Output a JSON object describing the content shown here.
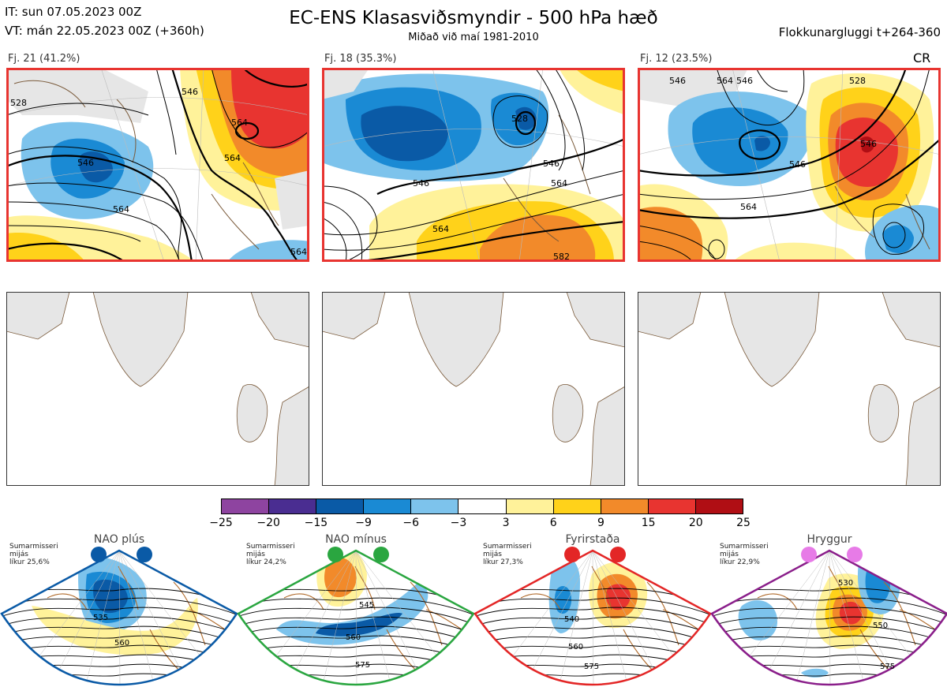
{
  "header": {
    "it": "IT: sun 07.05.2023 00Z",
    "vt": "VT: mán 22.05.2023 00Z  (+360h)",
    "title": "EC-ENS Klasasviðsmyndir - 500 hPa hæð",
    "subtitle": "Miðað við maí 1981-2010",
    "window": "Flokkunargluggi t+264-360"
  },
  "panels": [
    {
      "label": "Fj. 21 (41.2%)",
      "contours": [
        "528",
        "546",
        "564",
        "564",
        "546",
        "564",
        "564"
      ]
    },
    {
      "label": "Fj. 18 (35.3%)",
      "contours": [
        "528",
        "546",
        "546",
        "564",
        "564",
        "582"
      ]
    },
    {
      "label": "Fj. 12 (23.5%)",
      "tag": "CR",
      "contours": [
        "546",
        "564",
        "546",
        "546",
        "564",
        "546",
        "528"
      ]
    }
  ],
  "colorbar": {
    "colors": [
      "#8e44a0",
      "#4a2d91",
      "#0a5aa6",
      "#1a8ad4",
      "#7dc3ec",
      "#ffffff",
      "#fff29a",
      "#ffd21a",
      "#f28a2a",
      "#e83430",
      "#b00e14"
    ],
    "ticks": [
      "−25",
      "−20",
      "−15",
      "−9",
      "−6",
      "−3",
      "3",
      "6",
      "9",
      "15",
      "20",
      "25"
    ]
  },
  "regimes": [
    {
      "name": "NAO plús",
      "info": [
        "Sumarmisseri",
        "mijás",
        "líkur 25,6%"
      ],
      "border": "#0a5aa6",
      "dot": "#0a5aa6",
      "contours": [
        "535",
        "560"
      ]
    },
    {
      "name": "NAO mínus",
      "info": [
        "Sumarmisseri",
        "mijás",
        "líkur 24,2%"
      ],
      "border": "#2aa640",
      "dot": "#2aa640",
      "contours": [
        "545",
        "560",
        "575"
      ]
    },
    {
      "name": "Fyrirstaða",
      "info": [
        "Sumarmisseri",
        "mijás",
        "líkur 27,3%"
      ],
      "border": "#e32626",
      "dot": "#e32626",
      "contours": [
        "540",
        "560",
        "575"
      ]
    },
    {
      "name": "Hryggur",
      "info": [
        "Sumarmisseri",
        "mijás",
        "líkur 22,9%"
      ],
      "border": "#8a1e8a",
      "dot": "#e77be7",
      "contours": [
        "530",
        "550",
        "575"
      ]
    }
  ]
}
